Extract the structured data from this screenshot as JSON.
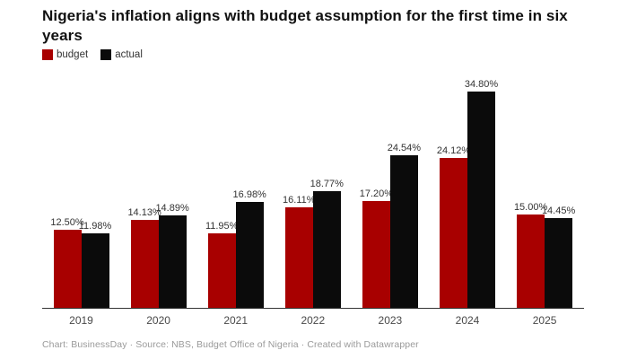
{
  "header": {
    "title": "Nigeria's inflation aligns with budget assumption for the first time in six years"
  },
  "legend": {
    "items": [
      {
        "label": "budget",
        "color": "#a80000"
      },
      {
        "label": "actual",
        "color": "#0b0b0b"
      }
    ]
  },
  "colors": {
    "budget": "#a80000",
    "actual": "#0b0b0b",
    "axis": "#333333",
    "label_text": "#333333",
    "footer_text": "#9a9a9a"
  },
  "chart_data": {
    "type": "bar",
    "categories": [
      "2019",
      "2020",
      "2021",
      "2022",
      "2023",
      "2024",
      "2025"
    ],
    "series": [
      {
        "name": "budget",
        "color": "#a80000",
        "values": [
          12.5,
          14.13,
          11.95,
          16.11,
          17.2,
          24.12,
          15.0
        ],
        "labels": [
          "12.50%",
          "14.13%",
          "11.95%",
          "16.11%",
          "17.20%",
          "24.12%",
          "15.00%"
        ]
      },
      {
        "name": "actual",
        "color": "#0b0b0b",
        "values": [
          11.98,
          14.89,
          16.98,
          18.77,
          24.54,
          34.8,
          14.45
        ],
        "labels": [
          "11.98%",
          "14.89%",
          "16.98%",
          "18.77%",
          "24.54%",
          "34.80%",
          "14.45%"
        ]
      }
    ],
    "title": "Nigeria's inflation aligns with budget assumption for the first time in six years",
    "xlabel": "",
    "ylabel": "",
    "ylim": [
      0,
      36
    ],
    "grid": false,
    "legend_position": "top-left",
    "value_format": "percent",
    "data_labels": true
  },
  "footer": {
    "text": "Chart: BusinessDay  · Source: NBS, Budget Office of Nigeria  · Created with Datawrapper"
  }
}
